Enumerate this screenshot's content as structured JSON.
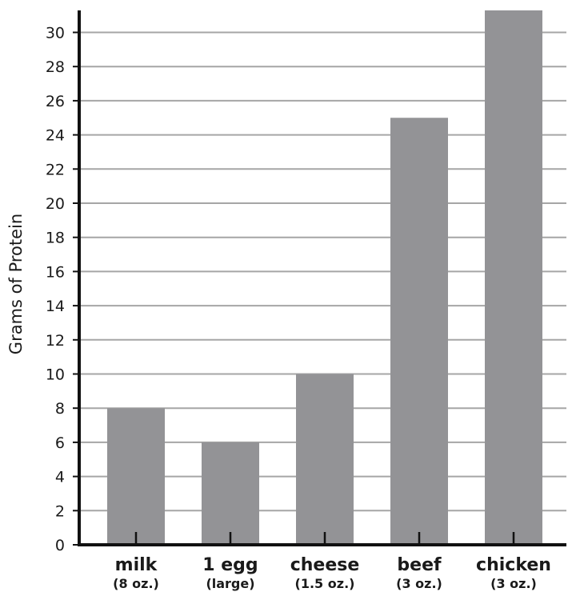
{
  "chart_data": {
    "type": "bar",
    "title": "",
    "xlabel": "",
    "ylabel": "Grams of Protein",
    "ylim": [
      0,
      31.5
    ],
    "yticks": [
      0,
      2,
      4,
      6,
      8,
      10,
      12,
      14,
      16,
      18,
      20,
      22,
      24,
      26,
      28,
      30
    ],
    "grid": true,
    "categories": [
      "milk",
      "1 egg",
      "cheese",
      "beef",
      "chicken"
    ],
    "category_sublabels": [
      "(8 oz.)",
      "(large)",
      "(1.5 oz.)",
      "(3 oz.)",
      "(3 oz.)"
    ],
    "values": [
      8,
      6,
      10,
      25,
      31.5
    ],
    "colors": {
      "bar": "#939396",
      "grid": "#a6a6a6",
      "axis": "#111111"
    }
  }
}
